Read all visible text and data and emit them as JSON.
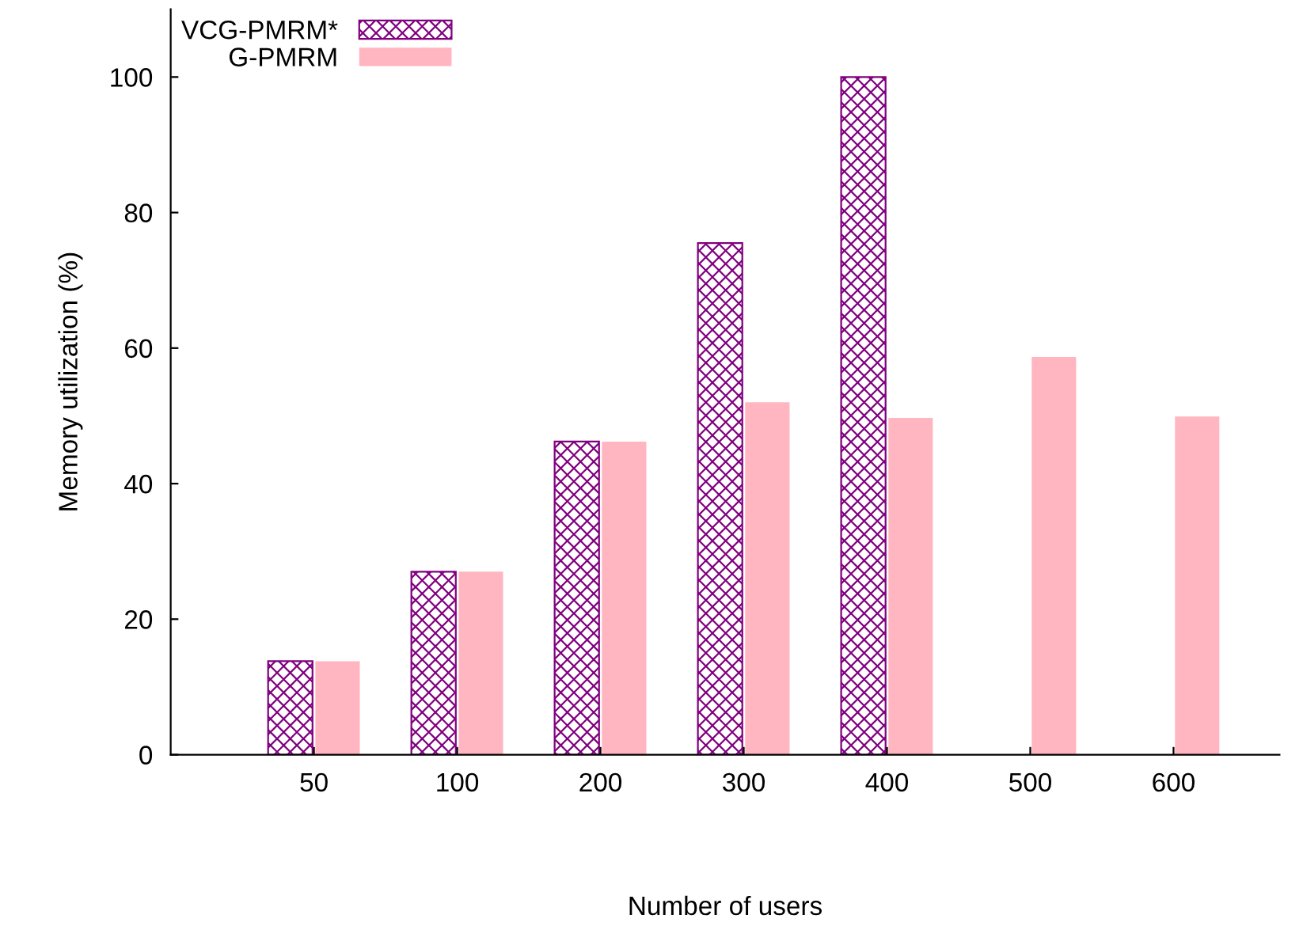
{
  "chart_data": {
    "type": "bar",
    "xlabel": "Number of users",
    "ylabel": "Memory utilization (%)",
    "categories": [
      "50",
      "100",
      "200",
      "300",
      "400",
      "500",
      "600"
    ],
    "series": [
      {
        "name": "VCG-PMRM*",
        "color": "#800080",
        "values": [
          13.8,
          27.0,
          46.2,
          75.5,
          100,
          null,
          null
        ]
      },
      {
        "name": "G-PMRM",
        "color": "#ffb6c1",
        "values": [
          13.8,
          27.0,
          46.2,
          52.0,
          49.7,
          58.7,
          49.9
        ]
      }
    ],
    "ylim": [
      0,
      110
    ],
    "yticks": [
      0,
      20,
      40,
      60,
      80,
      100
    ],
    "grid": false,
    "legend": "top left"
  }
}
